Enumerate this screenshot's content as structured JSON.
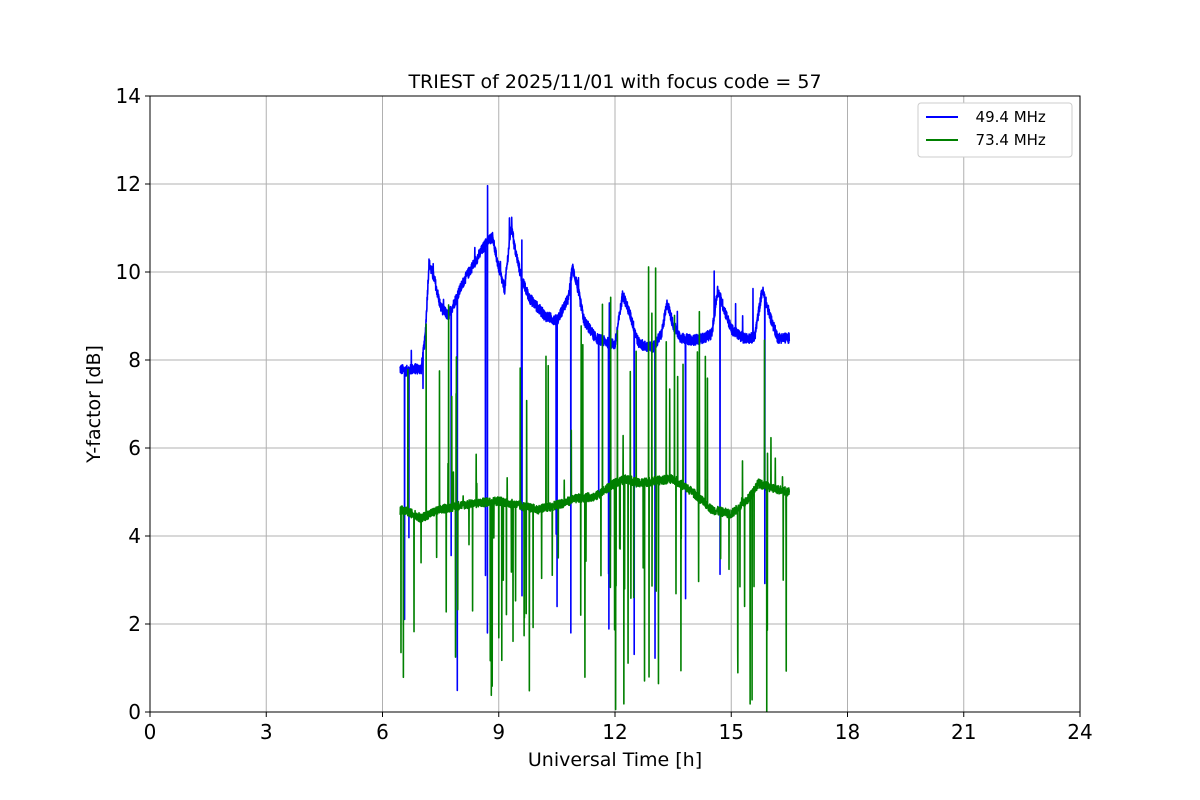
{
  "chart_data": {
    "type": "line",
    "title": "TRIEST of 2025/11/01 with focus code = 57",
    "xlabel": "Universal Time [h]",
    "ylabel": "Y-factor [dB]",
    "xlim": [
      0,
      24
    ],
    "ylim": [
      0,
      14
    ],
    "xticks": [
      "0",
      "3",
      "6",
      "9",
      "12",
      "15",
      "18",
      "21",
      "24"
    ],
    "yticks": [
      "0",
      "2",
      "4",
      "6",
      "8",
      "10",
      "12",
      "14"
    ],
    "grid": true,
    "legend_position": "top-right",
    "series": [
      {
        "name": "  49.4 MHz",
        "color": "#0000ff",
        "x": [
          6.45,
          6.6,
          6.8,
          7.0,
          7.1,
          7.2,
          7.35,
          7.5,
          7.7,
          7.9,
          8.1,
          8.3,
          8.5,
          8.7,
          8.85,
          8.9,
          9.0,
          9.15,
          9.3,
          9.35,
          9.4,
          9.5,
          9.6,
          9.8,
          10.0,
          10.2,
          10.5,
          10.8,
          10.9,
          11.0,
          11.2,
          11.5,
          11.8,
          12.0,
          12.2,
          12.4,
          12.6,
          12.8,
          13.0,
          13.2,
          13.35,
          13.5,
          13.7,
          14.0,
          14.3,
          14.5,
          14.65,
          14.8,
          15.0,
          15.3,
          15.6,
          15.8,
          16.0,
          16.2,
          16.5
        ],
        "y": [
          7.8,
          7.75,
          7.8,
          7.8,
          8.5,
          10.2,
          9.8,
          9.2,
          9.0,
          9.4,
          9.8,
          10.1,
          10.4,
          10.7,
          10.8,
          10.5,
          10.1,
          9.6,
          10.9,
          11.0,
          10.6,
          10.2,
          9.8,
          9.4,
          9.2,
          9.0,
          8.9,
          9.4,
          10.1,
          9.8,
          8.9,
          8.5,
          8.4,
          8.35,
          9.5,
          9.0,
          8.4,
          8.3,
          8.3,
          8.6,
          9.3,
          8.8,
          8.5,
          8.45,
          8.5,
          8.6,
          9.6,
          9.2,
          8.7,
          8.5,
          8.5,
          9.6,
          9.0,
          8.5,
          8.5
        ]
      },
      {
        "name": "  73.4 MHz",
        "color": "#008000",
        "x": [
          6.45,
          6.8,
          7.0,
          7.2,
          7.5,
          8.0,
          8.5,
          9.0,
          9.5,
          10.0,
          10.5,
          11.0,
          11.5,
          12.0,
          12.3,
          12.6,
          13.0,
          13.5,
          14.0,
          14.5,
          15.0,
          15.4,
          15.7,
          16.0,
          16.5
        ],
        "y": [
          4.6,
          4.5,
          4.4,
          4.5,
          4.6,
          4.7,
          4.75,
          4.8,
          4.7,
          4.6,
          4.7,
          4.85,
          4.9,
          5.2,
          5.3,
          5.2,
          5.25,
          5.3,
          5.0,
          4.6,
          4.5,
          4.8,
          5.2,
          5.1,
          5.0
        ]
      }
    ]
  }
}
